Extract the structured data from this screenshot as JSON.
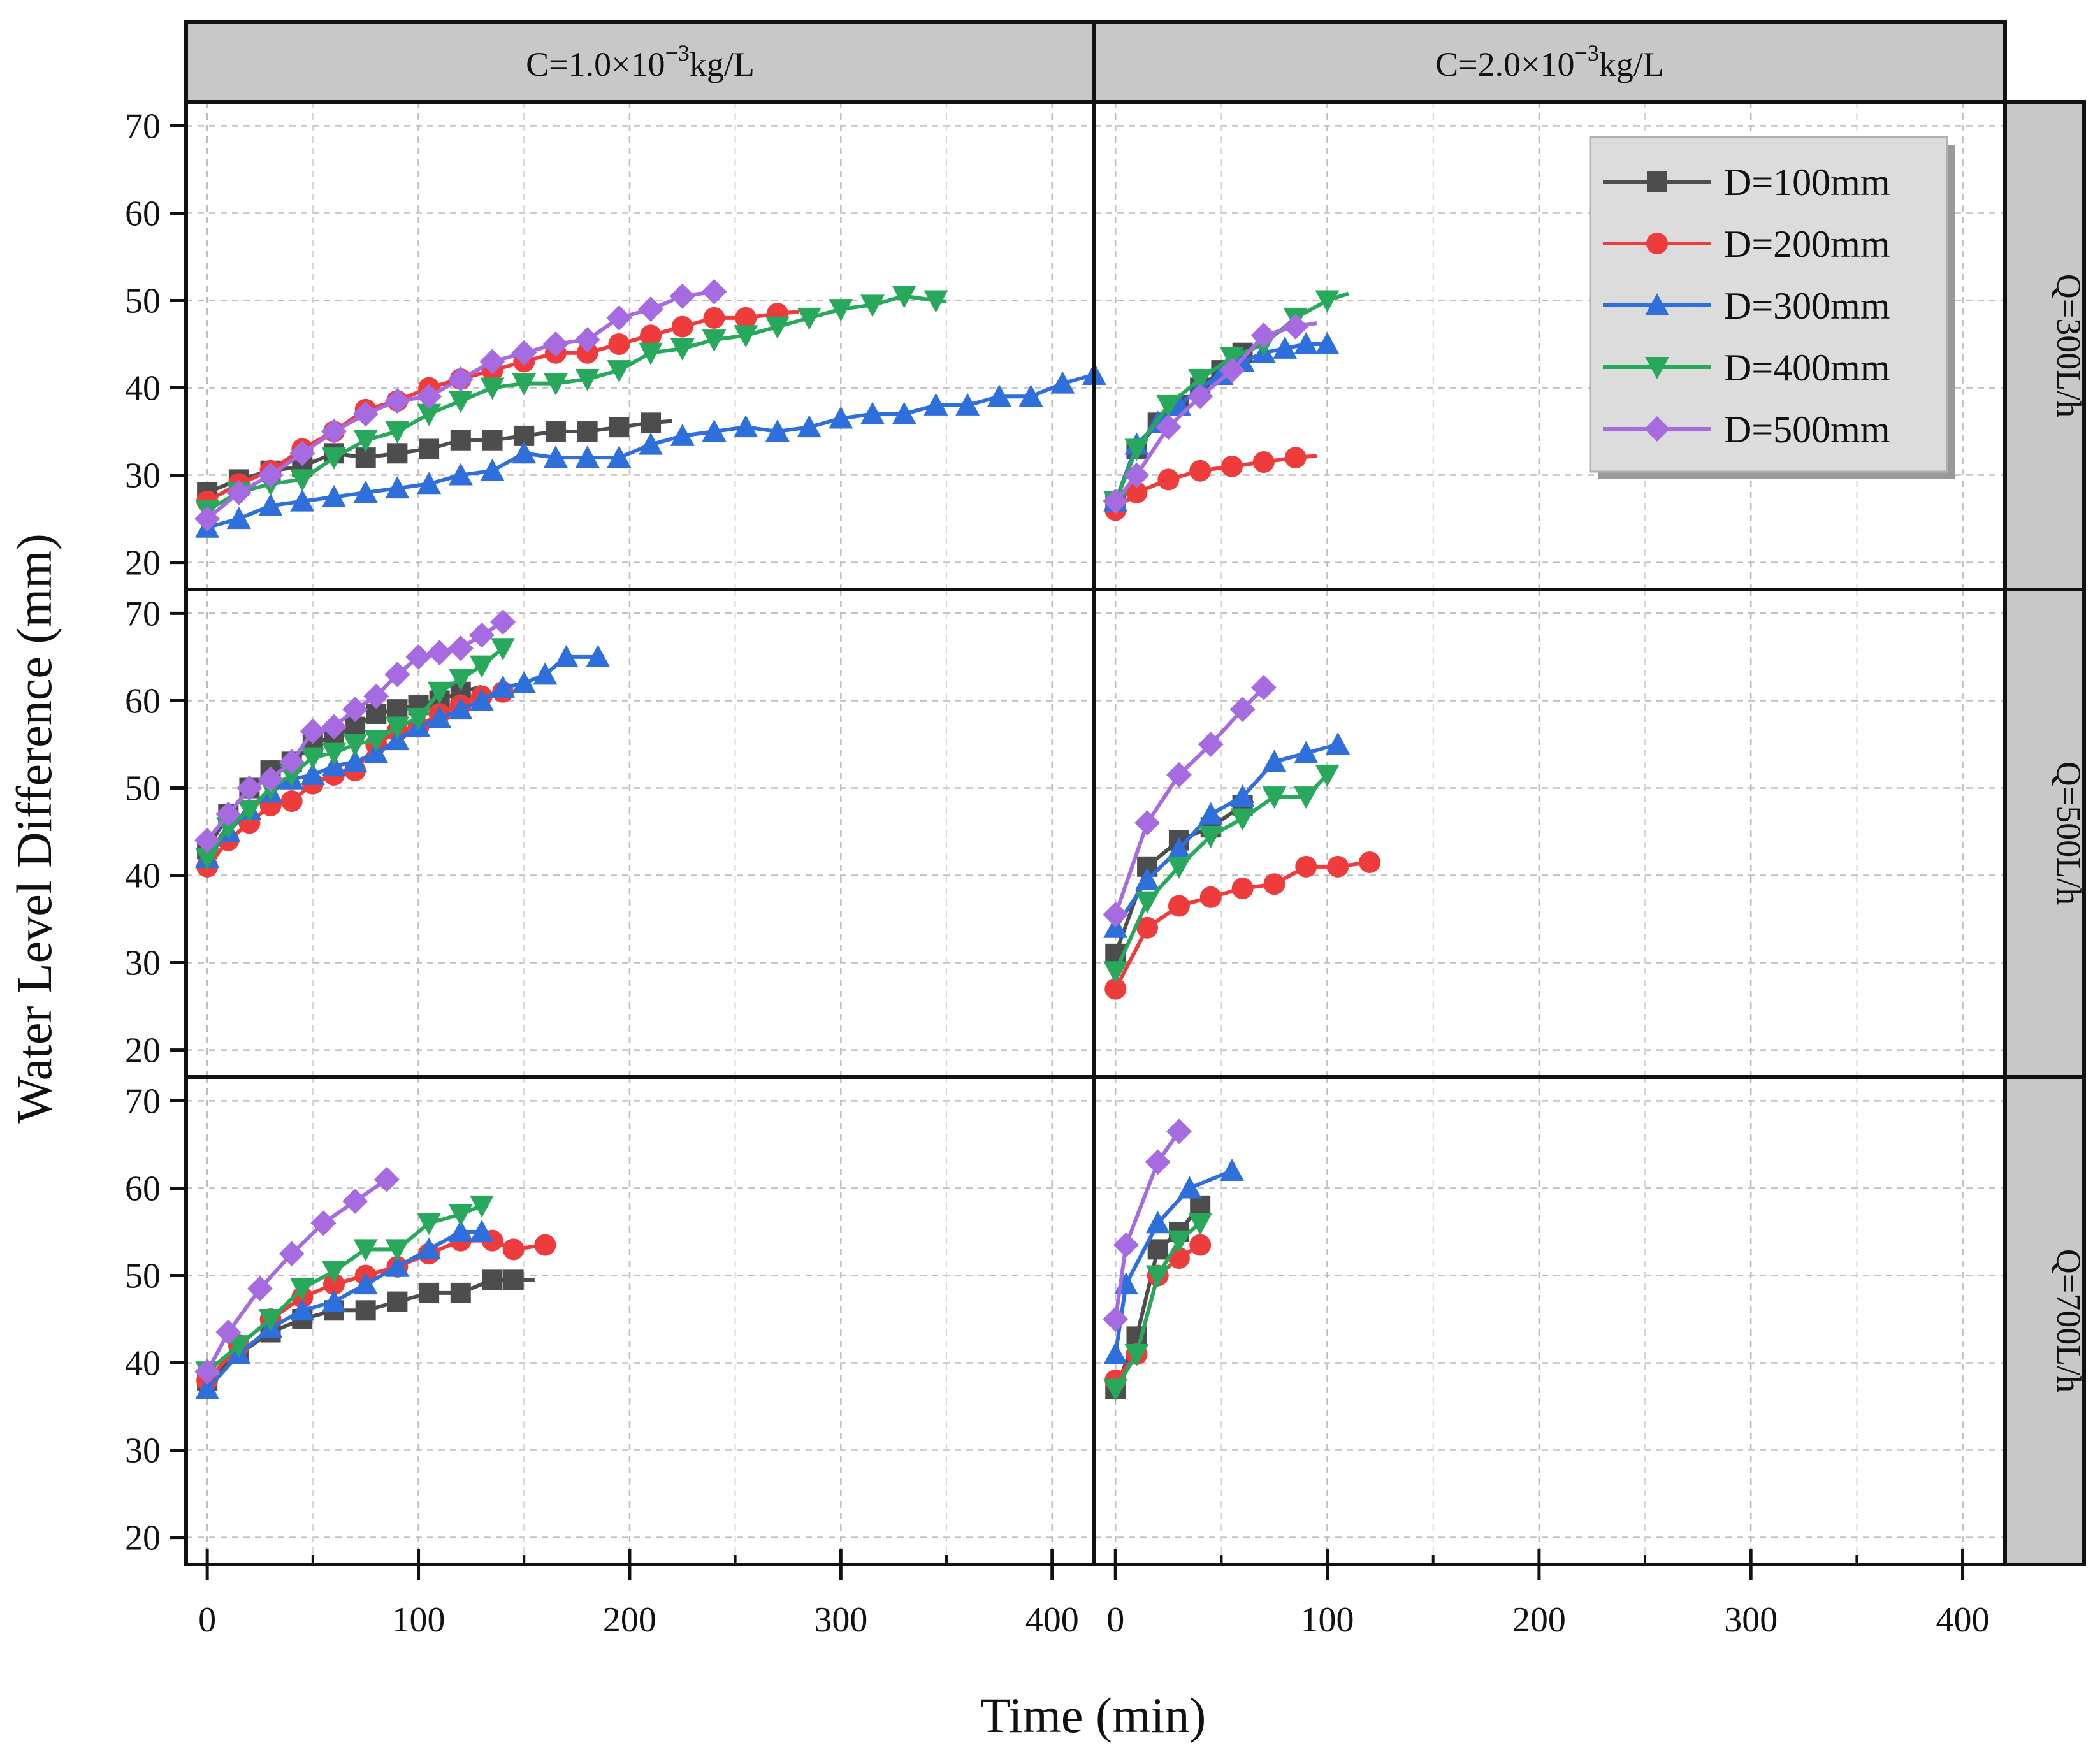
{
  "chart_data": {
    "type": "line",
    "xlabel": "Time (min)",
    "ylabel": "Water Level Difference (mm)",
    "xlim": [
      -10,
      420
    ],
    "ylim": [
      18,
      72
    ],
    "xticks": [
      0,
      100,
      200,
      300,
      400
    ],
    "yticks": [
      20,
      30,
      40,
      50,
      60,
      70
    ],
    "grid": true,
    "col_strips": [
      "C=1.0×10",
      "C=2.0×10"
    ],
    "col_strip_suffix": "kg/L",
    "col_strip_exponent": "−3",
    "row_strips": [
      "Q=300L/h",
      "Q=500L/h",
      "Q=700L/h"
    ],
    "legend": {
      "position": "top-right of panel C=2.0, Q=300",
      "entries": [
        {
          "label": "D=100mm",
          "color": "#4d4d4d",
          "marker": "square"
        },
        {
          "label": "D=200mm",
          "color": "#ee3b3b",
          "marker": "circle"
        },
        {
          "label": "D=300mm",
          "color": "#2f6fdc",
          "marker": "triangle-up"
        },
        {
          "label": "D=400mm",
          "color": "#27a85a",
          "marker": "triangle-down"
        },
        {
          "label": "D=500mm",
          "color": "#a66be0",
          "marker": "diamond"
        }
      ]
    },
    "panels": [
      {
        "row": 0,
        "col": 0,
        "series": [
          {
            "name": "D=100mm",
            "end_x": 220,
            "x": [
              0,
              15,
              30,
              45,
              60,
              75,
              90,
              105,
              120,
              135,
              150,
              165,
              180,
              195,
              210
            ],
            "y": [
              28,
              29.5,
              30.5,
              31,
              32.5,
              32,
              32.5,
              33,
              34,
              34,
              34.5,
              35,
              35,
              35.5,
              36
            ]
          },
          {
            "name": "D=200mm",
            "end_x": 280,
            "x": [
              0,
              15,
              30,
              45,
              60,
              75,
              90,
              105,
              120,
              135,
              150,
              165,
              180,
              195,
              210,
              225,
              240,
              255,
              270
            ],
            "y": [
              27,
              29,
              30.5,
              33,
              35,
              37.5,
              38.5,
              40,
              41,
              42,
              43,
              44,
              44,
              45,
              46,
              47,
              48,
              48,
              48.5
            ]
          },
          {
            "name": "D=300mm",
            "end_x": 420,
            "x": [
              0,
              15,
              30,
              45,
              60,
              75,
              90,
              105,
              120,
              135,
              150,
              165,
              180,
              195,
              210,
              225,
              240,
              255,
              270,
              285,
              300,
              315,
              330,
              345,
              360,
              375,
              390,
              405,
              420
            ],
            "y": [
              24,
              25,
              26.5,
              27,
              27.5,
              28,
              28.5,
              29,
              30,
              30.5,
              32.5,
              32,
              32,
              32,
              33.5,
              34.5,
              35,
              35.5,
              35,
              35.5,
              36.5,
              37,
              37,
              38,
              38,
              39,
              39,
              40.5,
              41.5
            ]
          },
          {
            "name": "D=400mm",
            "end_x": 350,
            "x": [
              0,
              15,
              30,
              45,
              60,
              75,
              90,
              105,
              120,
              135,
              150,
              165,
              180,
              195,
              210,
              225,
              240,
              255,
              270,
              285,
              300,
              315,
              330,
              345
            ],
            "y": [
              26,
              28,
              29,
              29.5,
              32,
              34,
              35,
              37,
              38.5,
              40,
              40.5,
              40.5,
              41,
              42,
              44,
              44.5,
              45.5,
              46,
              47,
              48,
              49,
              49.5,
              50.5,
              50
            ]
          },
          {
            "name": "D=500mm",
            "end_x": 240,
            "x": [
              0,
              15,
              30,
              45,
              60,
              75,
              90,
              105,
              120,
              135,
              150,
              165,
              180,
              195,
              210,
              225,
              240
            ],
            "y": [
              25,
              28,
              30,
              32.5,
              35,
              37,
              38.5,
              39,
              41,
              43,
              44,
              45,
              45.5,
              48,
              49,
              50.5,
              51
            ]
          }
        ]
      },
      {
        "row": 0,
        "col": 1,
        "series": [
          {
            "name": "D=100mm",
            "end_x": 60,
            "x": [
              0,
              10,
              20,
              30,
              40,
              50,
              60
            ],
            "y": [
              27,
              33,
              36,
              38,
              40,
              42,
              44
            ]
          },
          {
            "name": "D=200mm",
            "end_x": 95,
            "x": [
              0,
              10,
              25,
              40,
              55,
              70,
              85
            ],
            "y": [
              26,
              28,
              29.5,
              30.5,
              31,
              31.5,
              32
            ]
          },
          {
            "name": "D=300mm",
            "end_x": 100,
            "x": [
              0,
              10,
              20,
              30,
              40,
              50,
              60,
              70,
              80,
              90,
              100
            ],
            "y": [
              27,
              33.5,
              36,
              38,
              40,
              41.5,
              43,
              44,
              44.5,
              45,
              45
            ]
          },
          {
            "name": "D=400mm",
            "end_x": 110,
            "x": [
              0,
              10,
              25,
              40,
              55,
              70,
              85,
              100
            ],
            "y": [
              27,
              33,
              38,
              41,
              43.5,
              45,
              48,
              50
            ]
          },
          {
            "name": "D=500mm",
            "end_x": 95,
            "x": [
              0,
              10,
              25,
              40,
              55,
              70,
              85
            ],
            "y": [
              27,
              30,
              35.5,
              39,
              42,
              46,
              47
            ]
          }
        ]
      },
      {
        "row": 1,
        "col": 0,
        "series": [
          {
            "name": "D=100mm",
            "end_x": 130,
            "x": [
              0,
              10,
              20,
              30,
              40,
              50,
              60,
              70,
              80,
              90,
              100,
              110,
              120
            ],
            "y": [
              43,
              47,
              50,
              52,
              53,
              55,
              56,
              57,
              58.5,
              59,
              59.5,
              60,
              61
            ]
          },
          {
            "name": "D=200mm",
            "end_x": 140,
            "x": [
              0,
              10,
              20,
              30,
              40,
              50,
              60,
              70,
              80,
              90,
              100,
              110,
              120,
              130,
              140
            ],
            "y": [
              41,
              44,
              46,
              48,
              48.5,
              50.5,
              51.5,
              52,
              55,
              56.5,
              57,
              58.5,
              59.5,
              60.5,
              61
            ]
          },
          {
            "name": "D=300mm",
            "end_x": 185,
            "x": [
              0,
              10,
              20,
              30,
              40,
              50,
              60,
              70,
              80,
              90,
              100,
              110,
              120,
              130,
              140,
              150,
              160,
              170,
              185
            ],
            "y": [
              42,
              45,
              47.5,
              49.5,
              51,
              51.5,
              52.5,
              53,
              54,
              55.5,
              57,
              58,
              59,
              60,
              61.5,
              62,
              63,
              65,
              65
            ]
          },
          {
            "name": "D=400mm",
            "end_x": 140,
            "x": [
              0,
              10,
              20,
              30,
              40,
              50,
              60,
              70,
              80,
              90,
              100,
              110,
              120,
              130,
              140
            ],
            "y": [
              42,
              45.5,
              47.5,
              50,
              51.5,
              53.5,
              54,
              55,
              55.5,
              57,
              58,
              61,
              62.5,
              64,
              66
            ]
          },
          {
            "name": "D=500mm",
            "end_x": 140,
            "x": [
              0,
              10,
              20,
              30,
              40,
              50,
              60,
              70,
              80,
              90,
              100,
              110,
              120,
              130,
              140
            ],
            "y": [
              44,
              47,
              50,
              51,
              53,
              56.5,
              57,
              59,
              60.5,
              63,
              65,
              65.5,
              66,
              67.5,
              69
            ]
          }
        ]
      },
      {
        "row": 1,
        "col": 1,
        "series": [
          {
            "name": "D=100mm",
            "end_x": 65,
            "x": [
              0,
              15,
              30,
              45,
              60
            ],
            "y": [
              31,
              41,
              44,
              45.5,
              48
            ]
          },
          {
            "name": "D=200mm",
            "end_x": 120,
            "x": [
              0,
              15,
              30,
              45,
              60,
              75,
              90,
              105,
              120
            ],
            "y": [
              27,
              34,
              36.5,
              37.5,
              38.5,
              39,
              41,
              41,
              41.5
            ]
          },
          {
            "name": "D=300mm",
            "end_x": 105,
            "x": [
              0,
              15,
              30,
              45,
              60,
              75,
              90,
              105
            ],
            "y": [
              34,
              39.5,
              43,
              47,
              49,
              53,
              54,
              55
            ]
          },
          {
            "name": "D=400mm",
            "end_x": 100,
            "x": [
              0,
              15,
              30,
              45,
              60,
              75,
              90,
              100
            ],
            "y": [
              29,
              37,
              41,
              44.5,
              46.5,
              49,
              49,
              51.5
            ]
          },
          {
            "name": "D=500mm",
            "end_x": 70,
            "x": [
              0,
              15,
              30,
              45,
              60,
              70
            ],
            "y": [
              35.5,
              46,
              51.5,
              55,
              59,
              61.5
            ]
          }
        ]
      },
      {
        "row": 2,
        "col": 0,
        "series": [
          {
            "name": "D=100mm",
            "end_x": 155,
            "x": [
              0,
              15,
              30,
              45,
              60,
              75,
              90,
              105,
              120,
              135,
              145
            ],
            "y": [
              38,
              41,
              43.5,
              45,
              46,
              46,
              47,
              48,
              48,
              49.5,
              49.5
            ]
          },
          {
            "name": "D=200mm",
            "end_x": 160,
            "x": [
              0,
              15,
              30,
              45,
              60,
              75,
              90,
              105,
              120,
              135,
              145,
              160
            ],
            "y": [
              38,
              42,
              45,
              47.5,
              49,
              50,
              51,
              52.5,
              54,
              54,
              53,
              53.5
            ]
          },
          {
            "name": "D=300mm",
            "end_x": 130,
            "x": [
              0,
              15,
              30,
              45,
              60,
              75,
              90,
              105,
              120,
              130
            ],
            "y": [
              37,
              41,
              44,
              46,
              47,
              49,
              51,
              53,
              55,
              55
            ]
          },
          {
            "name": "D=400mm",
            "end_x": 130,
            "x": [
              0,
              15,
              30,
              45,
              60,
              75,
              90,
              105,
              120,
              130
            ],
            "y": [
              39,
              42,
              45,
              48.5,
              50.5,
              53,
              53,
              56,
              57,
              58
            ]
          },
          {
            "name": "D=500mm",
            "end_x": 85,
            "x": [
              0,
              10,
              25,
              40,
              55,
              70,
              85
            ],
            "y": [
              39,
              43.5,
              48.5,
              52.5,
              56,
              58.5,
              61
            ]
          }
        ]
      },
      {
        "row": 2,
        "col": 1,
        "series": [
          {
            "name": "D=100mm",
            "end_x": 40,
            "x": [
              0,
              10,
              20,
              30,
              40
            ],
            "y": [
              37,
              43,
              53,
              55,
              58
            ]
          },
          {
            "name": "D=200mm",
            "end_x": 40,
            "x": [
              0,
              10,
              20,
              30,
              40
            ],
            "y": [
              38,
              41,
              50,
              52,
              53.5
            ]
          },
          {
            "name": "D=300mm",
            "end_x": 55,
            "x": [
              0,
              5,
              20,
              35,
              55
            ],
            "y": [
              41,
              49,
              56,
              60,
              62
            ]
          },
          {
            "name": "D=400mm",
            "end_x": 40,
            "x": [
              0,
              10,
              20,
              30,
              40
            ],
            "y": [
              37,
              41,
              50,
              54,
              56
            ]
          },
          {
            "name": "D=500mm",
            "end_x": 30,
            "x": [
              0,
              5,
              20,
              30
            ],
            "y": [
              45,
              53.5,
              63,
              66.5
            ]
          }
        ]
      }
    ]
  }
}
